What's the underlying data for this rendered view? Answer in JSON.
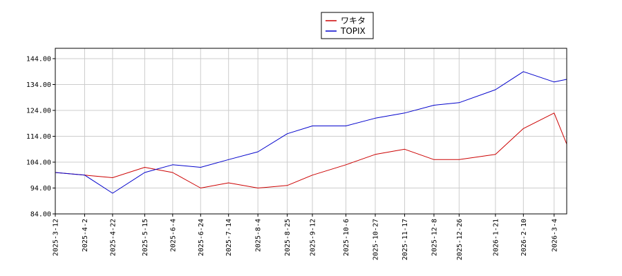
{
  "chart_data": {
    "type": "line",
    "title": "",
    "xlabel": "",
    "ylabel": "",
    "ylim": [
      84,
      148
    ],
    "yticks": [
      84,
      94,
      104,
      114,
      124,
      134,
      144
    ],
    "ytick_labels": [
      "84.00",
      "94.00",
      "104.00",
      "114.00",
      "124.00",
      "134.00",
      "144.00"
    ],
    "x": [
      "2025-3-12",
      "2025-4-2",
      "2025-4-22",
      "2025-5-15",
      "2025-6-4",
      "2025-6-24",
      "2025-7-14",
      "2025-8-4",
      "2025-8-25",
      "2025-9-12",
      "2025-10-6",
      "2025-10-27",
      "2025-11-17",
      "2025-12-8",
      "2025-12-26",
      "2026-1-21",
      "2026-2-10",
      "2026-3-4",
      "2026-3-13"
    ],
    "xtick_labels": [
      "2025-3-12",
      "2025-4-2",
      "2025-4-22",
      "2025-5-15",
      "2025-6-4",
      "2025-6-24",
      "2025-7-14",
      "2025-8-4",
      "2025-8-25",
      "2025-9-12",
      "2025-10-6",
      "2025-10-27",
      "2025-11-17",
      "2025-12-8",
      "2025-12-26",
      "2026-1-21",
      "2026-2-10",
      "2026-3-4"
    ],
    "grid": true,
    "legend_position": "top-center",
    "series": [
      {
        "name": "ワキタ",
        "color": "#cc0000",
        "values": [
          100,
          99,
          98,
          102,
          100,
          94,
          96,
          94,
          95,
          99,
          103,
          107,
          109,
          105,
          105,
          107,
          117,
          123,
          111
        ]
      },
      {
        "name": "TOPIX",
        "color": "#0000cc",
        "values": [
          100,
          99,
          92,
          100,
          103,
          102,
          105,
          108,
          115,
          118,
          118,
          121,
          123,
          126,
          127,
          132,
          139,
          135,
          136
        ]
      }
    ]
  }
}
